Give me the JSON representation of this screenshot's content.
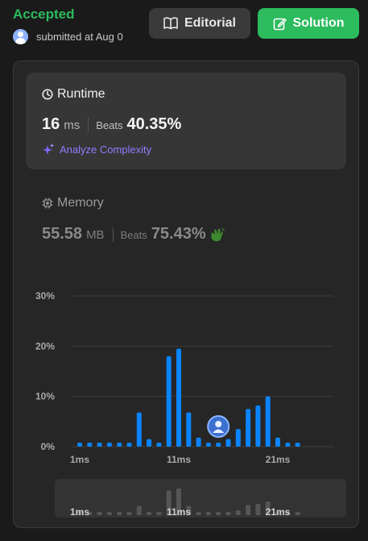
{
  "header": {
    "status": "Accepted",
    "submitted_text": "submitted at Aug 0",
    "editorial_label": "Editorial",
    "solution_label": "Solution"
  },
  "runtime": {
    "title": "Runtime",
    "value": "16",
    "unit": "ms",
    "beats_label": "Beats",
    "beats_value": "40.35%",
    "analyze_label": "Analyze Complexity"
  },
  "memory": {
    "title": "Memory",
    "value": "55.58",
    "unit": "MB",
    "beats_label": "Beats",
    "beats_value": "75.43%"
  },
  "colors": {
    "accepted": "#2cbb5d",
    "bar": "#0a84ff",
    "mini_bar": "#555555",
    "grid": "#3d3d3d"
  },
  "chart_data": {
    "type": "bar",
    "x": [
      1,
      2,
      3,
      4,
      5,
      6,
      7,
      8,
      9,
      10,
      11,
      12,
      13,
      14,
      15,
      16,
      17,
      18,
      19,
      20,
      21,
      22,
      23
    ],
    "values": [
      0.8,
      0.8,
      0.8,
      0.8,
      0.8,
      0.8,
      6.8,
      1.5,
      0.8,
      18,
      19.5,
      6.8,
      1.8,
      0.8,
      0.8,
      1.5,
      3.5,
      7.5,
      8.2,
      10,
      1.8,
      0.8,
      0.8
    ],
    "x_tick_labels": [
      "1ms",
      "11ms",
      "21ms"
    ],
    "y_tick_labels": [
      "30%",
      "20%",
      "10%",
      "0%"
    ],
    "ylim": [
      0,
      30
    ],
    "marker_x": 15,
    "grid": true,
    "mini_x_tick_labels": [
      "1ms",
      "11ms",
      "21ms"
    ]
  }
}
